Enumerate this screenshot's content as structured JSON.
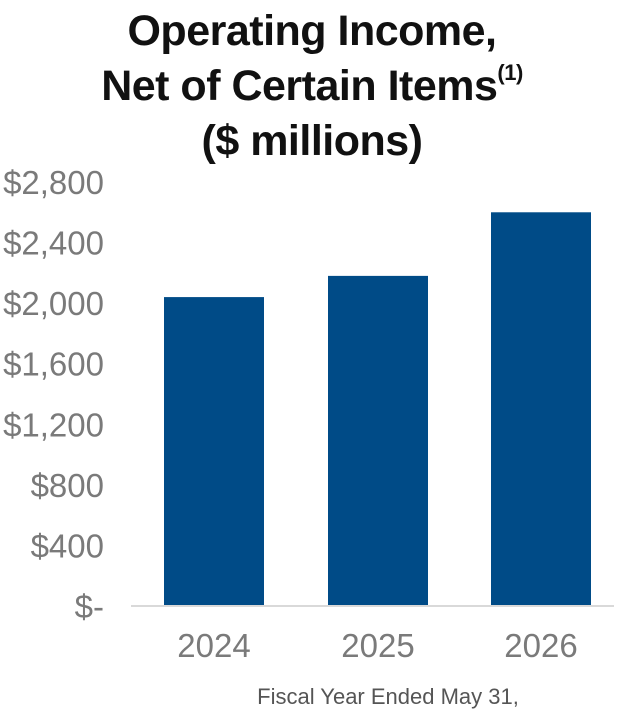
{
  "title": {
    "line1": "Operating Income,",
    "line2": "Net of Certain Items",
    "footnote_marker": "(1)",
    "line3": "($ millions)"
  },
  "colors": {
    "bar": "#004b87",
    "axis": "#d9d9d9",
    "tick_text": "#7a7a7a"
  },
  "chart_data": {
    "type": "bar",
    "title": "Operating Income, Net of Certain Items(1) ($ millions)",
    "categories": [
      "2024",
      "2025",
      "2026"
    ],
    "values": [
      2040,
      2180,
      2600
    ],
    "xlabel": "Fiscal Year Ended May 31,",
    "ylabel": "",
    "ylim": [
      0,
      2800
    ],
    "yticks": [
      0,
      400,
      800,
      1200,
      1600,
      2000,
      2400,
      2800
    ],
    "ytick_labels": [
      "$-",
      "$400",
      "$800",
      "$1,200",
      "$1,600",
      "$2,000",
      "$2,400",
      "$2,800"
    ],
    "grid": false,
    "legend": "none"
  }
}
